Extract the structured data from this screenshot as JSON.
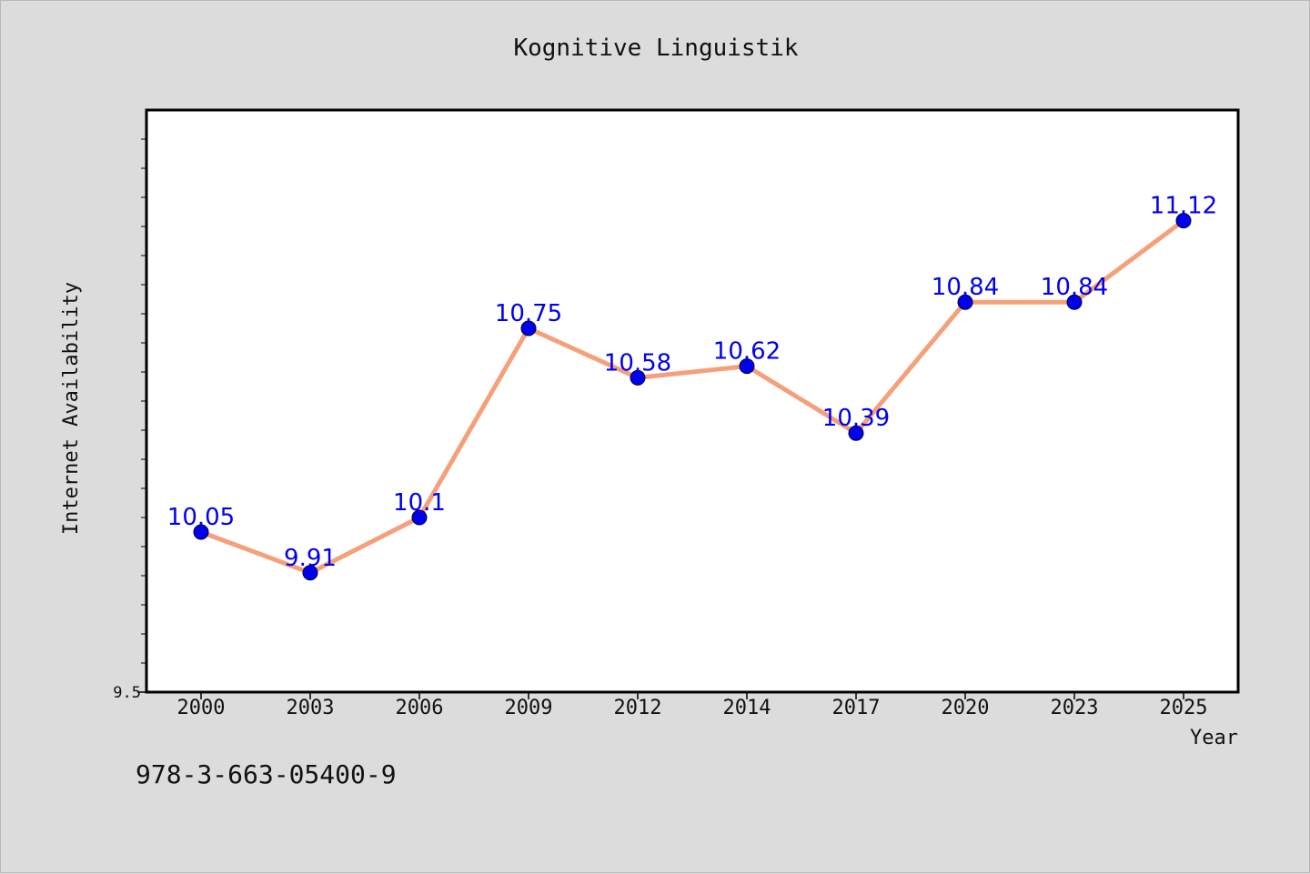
{
  "chart_data": {
    "type": "line",
    "title": "Kognitive Linguistik",
    "xlabel": "Year",
    "ylabel": "Internet Availability",
    "categories": [
      "2000",
      "2003",
      "2006",
      "2009",
      "2012",
      "2014",
      "2017",
      "2020",
      "2023",
      "2025"
    ],
    "series": [
      {
        "values": [
          10.05,
          9.91,
          10.1,
          10.75,
          10.58,
          10.62,
          10.39,
          10.84,
          10.84,
          11.12
        ]
      }
    ],
    "data_labels": [
      "10.05",
      "9.91",
      "10.1",
      "10.75",
      "10.58",
      "10.62",
      "10.39",
      "10.84",
      "10.84",
      "11.12"
    ],
    "ylim": [
      9.5,
      11.5
    ],
    "y_tick_labels": [
      {
        "value": 9.5,
        "label": "9.5"
      }
    ],
    "grid": false,
    "legend": "none",
    "colors": {
      "line": "#f4a07a",
      "marker": "#0000ee",
      "data_label": "#0000ee",
      "plot_background": "#ffffff",
      "page_background": "#dcdcdc"
    }
  },
  "footnote": "978-3-663-05400-9"
}
